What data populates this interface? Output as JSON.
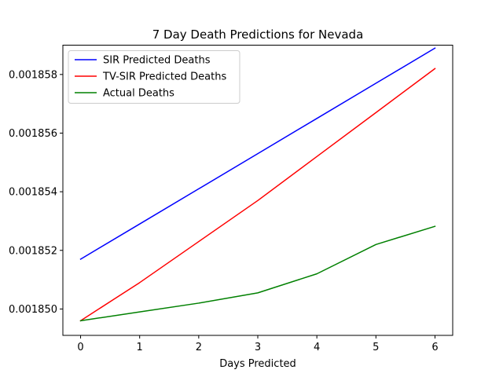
{
  "chart_data": {
    "type": "line",
    "title": "7 Day Death Predictions for Nevada",
    "xlabel": "Days Predicted",
    "ylabel": "",
    "x": [
      0,
      1,
      2,
      3,
      4,
      5,
      6
    ],
    "xlim": [
      -0.3,
      6.3
    ],
    "ylim": [
      0.0018491,
      0.001859
    ],
    "xticks": [
      0,
      1,
      2,
      3,
      4,
      5,
      6
    ],
    "yticks": [
      0.00185,
      0.001852,
      0.001854,
      0.001856,
      0.001858
    ],
    "ytick_labels": [
      "0.001850",
      "0.001852",
      "0.001854",
      "0.001856",
      "0.001858"
    ],
    "grid": false,
    "legend_position": "top-left",
    "series": [
      {
        "name": "SIR Predicted Deaths",
        "color": "#0000ff",
        "values": [
          0.0018517,
          0.0018529,
          0.0018541,
          0.0018553,
          0.0018565,
          0.0018577,
          0.0018589
        ]
      },
      {
        "name": "TV-SIR Predicted Deaths",
        "color": "#ff0000",
        "values": [
          0.0018496,
          0.0018509,
          0.0018523,
          0.0018537,
          0.0018552,
          0.0018567,
          0.0018582
        ]
      },
      {
        "name": "Actual Deaths",
        "color": "#008000",
        "values": [
          0.0018496,
          0.0018499,
          0.0018502,
          0.00185055,
          0.0018512,
          0.0018522,
          0.00185282
        ]
      }
    ]
  }
}
